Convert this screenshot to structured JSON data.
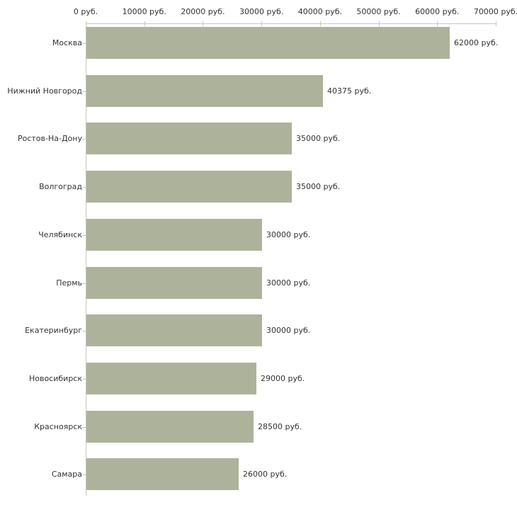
{
  "chart_data": {
    "type": "bar",
    "orientation": "horizontal",
    "title": "",
    "xlabel": "",
    "ylabel": "",
    "xlim": [
      0,
      70000
    ],
    "grid": false,
    "legend": false,
    "x_ticks": [
      {
        "value": 0,
        "label": "0 руб."
      },
      {
        "value": 10000,
        "label": "10000 руб."
      },
      {
        "value": 20000,
        "label": "20000 руб."
      },
      {
        "value": 30000,
        "label": "30000 руб."
      },
      {
        "value": 40000,
        "label": "40000 руб."
      },
      {
        "value": 50000,
        "label": "50000 руб."
      },
      {
        "value": 60000,
        "label": "60000 руб."
      },
      {
        "value": 70000,
        "label": "70000 руб."
      }
    ],
    "categories": [
      "Москва",
      "Нижний Новгород",
      "Ростов-На-Дону",
      "Волгоград",
      "Челябинск",
      "Пермь",
      "Екатеринбург",
      "Новосибирск",
      "Красноярск",
      "Самара"
    ],
    "values": [
      62000,
      40375,
      35000,
      35000,
      30000,
      30000,
      30000,
      29000,
      28500,
      26000
    ],
    "value_labels": [
      "62000 руб.",
      "40375 руб.",
      "35000 руб.",
      "35000 руб.",
      "30000 руб.",
      "30000 руб.",
      "30000 руб.",
      "29000 руб.",
      "28500 руб.",
      "26000 руб."
    ]
  },
  "colors": {
    "bar_fill": "#adb39a",
    "axis_line": "#c6c6c6",
    "tick_mark": "#c9c9a3",
    "text": "#333333",
    "background": "#ffffff"
  }
}
